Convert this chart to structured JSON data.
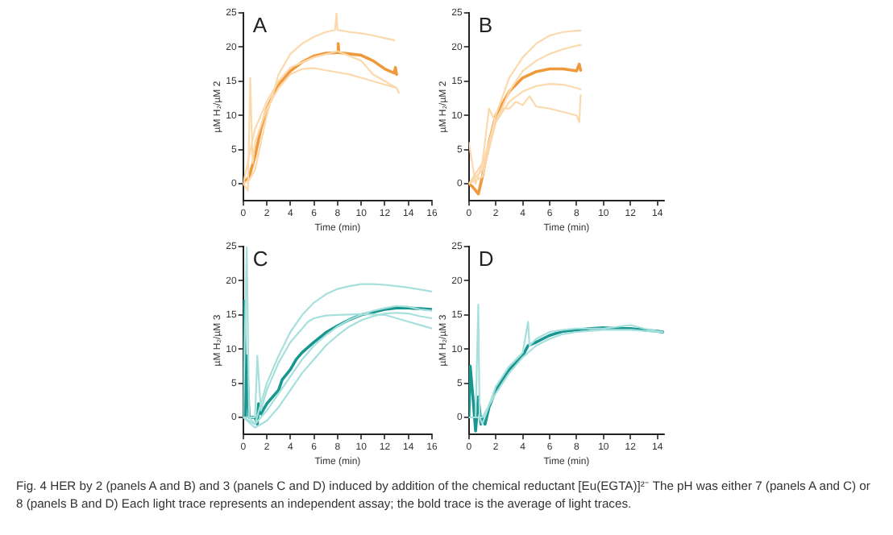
{
  "chart_data": [
    {
      "type": "line",
      "title": "A",
      "xlabel": "Time (min)",
      "ylabel": "µM H₂/µM 2",
      "xlim": [
        0,
        16
      ],
      "ylim": [
        -2.5,
        25
      ],
      "xticks": [
        0,
        2,
        4,
        6,
        8,
        10,
        12,
        14,
        16
      ],
      "yticks": [
        0,
        5,
        10,
        15,
        20,
        25
      ],
      "grid": false,
      "legend": false,
      "marker": "none",
      "line_style": "solid",
      "series": [
        {
          "color": "#fcd9ad",
          "x": [
            0,
            0.5,
            1,
            2,
            3,
            3.5,
            4,
            5,
            6,
            7,
            7.8,
            7.9,
            8,
            9,
            10,
            11,
            12,
            12.8
          ],
          "values": [
            0,
            0.5,
            2,
            10,
            16,
            17.5,
            19,
            20.5,
            21.5,
            22.2,
            22.5,
            25,
            22.5,
            22.2,
            22,
            21.7,
            21.3,
            21
          ]
        },
        {
          "color": "#fcd9ad",
          "x": [
            0,
            0.4,
            0.6,
            0.8,
            1,
            2,
            3,
            4,
            5,
            6,
            7,
            8,
            9,
            10,
            11,
            12,
            13,
            13.2
          ],
          "values": [
            0,
            -1,
            15.5,
            3,
            6,
            11,
            14,
            16,
            16.8,
            16.9,
            16.6,
            16.3,
            16,
            15.5,
            15,
            14.5,
            14,
            13.3
          ]
        },
        {
          "color": "#fcd9ad",
          "x": [
            0,
            1,
            2,
            3,
            4,
            6,
            8,
            10,
            11,
            12,
            13
          ],
          "values": [
            0,
            8,
            12,
            15,
            17,
            18.5,
            19.4,
            18,
            16,
            15,
            14
          ]
        },
        {
          "color": "#f0993a",
          "x": [
            0,
            0.5,
            1,
            1.5,
            2,
            3,
            4,
            5,
            6,
            7,
            8,
            8.05,
            8.1,
            9,
            10,
            11,
            12,
            12.8,
            12.9,
            13
          ],
          "values": [
            0,
            1,
            4,
            8,
            11,
            14.5,
            16.5,
            17.8,
            18.7,
            19.1,
            19.2,
            20.5,
            19.2,
            19,
            18.8,
            18,
            16.8,
            16.2,
            17,
            16
          ]
        }
      ]
    },
    {
      "type": "line",
      "title": "B",
      "xlabel": "Time (min)",
      "ylabel": "µM H₂/µM 2",
      "xlim": [
        0,
        14.5
      ],
      "ylim": [
        -2.5,
        25
      ],
      "xticks": [
        0,
        2,
        4,
        6,
        8,
        10,
        12,
        14
      ],
      "yticks": [
        0,
        5,
        10,
        15,
        20,
        25
      ],
      "grid": false,
      "legend": false,
      "marker": "none",
      "line_style": "solid",
      "series": [
        {
          "color": "#fcd9ad",
          "x": [
            0,
            1,
            2,
            3,
            4,
            5,
            6,
            7,
            8,
            8.3
          ],
          "values": [
            0,
            2,
            10,
            15.5,
            18.5,
            20.5,
            21.7,
            22.2,
            22.4,
            22.4
          ]
        },
        {
          "color": "#fcd9ad",
          "x": [
            0,
            1,
            2,
            3,
            4,
            5,
            6,
            7,
            8,
            8.3
          ],
          "values": [
            0,
            1,
            9,
            13.5,
            16.5,
            18,
            19,
            19.7,
            20.2,
            20.3
          ]
        },
        {
          "color": "#fcd9ad",
          "x": [
            0,
            0.5,
            1,
            2,
            3,
            4,
            5,
            6,
            7,
            8,
            8.3
          ],
          "values": [
            6,
            0,
            3,
            9,
            12,
            13.5,
            14.3,
            14.6,
            14.5,
            14,
            13.8
          ]
        },
        {
          "color": "#fcd9ad",
          "x": [
            0,
            1,
            1.5,
            2,
            2.5,
            3,
            3.5,
            4,
            4.5,
            5,
            6,
            7,
            8,
            8.2,
            8.3
          ],
          "values": [
            0,
            3,
            11,
            9,
            11,
            11,
            12,
            11.5,
            12.8,
            11.3,
            11,
            10.5,
            10,
            9,
            13
          ]
        },
        {
          "color": "#f0993a",
          "x": [
            0,
            0.3,
            0.7,
            1,
            1.5,
            2,
            3,
            4,
            5,
            6,
            7,
            8,
            8.2,
            8.3
          ],
          "values": [
            0,
            -0.5,
            -1.5,
            1,
            6,
            10,
            13.5,
            15.5,
            16.4,
            16.8,
            16.8,
            16.5,
            17.5,
            16.6
          ]
        }
      ]
    },
    {
      "type": "line",
      "title": "C",
      "xlabel": "Time (min)",
      "ylabel": "µM H₂/µM 3",
      "xlim": [
        0,
        16
      ],
      "ylim": [
        -2.5,
        25
      ],
      "xticks": [
        0,
        2,
        4,
        6,
        8,
        10,
        12,
        14,
        16
      ],
      "yticks": [
        0,
        5,
        10,
        15,
        20,
        25
      ],
      "grid": false,
      "legend": false,
      "marker": "none",
      "line_style": "solid",
      "series": [
        {
          "color": "#a6e0dc",
          "x": [
            0,
            0.3,
            0.5,
            1,
            1.5,
            2,
            3,
            4,
            5,
            6,
            7,
            8,
            9,
            10,
            11,
            12,
            13,
            14,
            15,
            16
          ],
          "values": [
            0,
            25,
            0,
            -1,
            2,
            5,
            9,
            12.5,
            15,
            16.8,
            18,
            18.8,
            19.2,
            19.5,
            19.5,
            19.4,
            19.2,
            19,
            18.7,
            18.4
          ]
        },
        {
          "color": "#a6e0dc",
          "x": [
            0,
            1,
            1.2,
            1.5,
            2,
            3,
            4,
            5,
            5.5,
            6,
            7,
            8,
            10,
            12,
            14,
            16
          ],
          "values": [
            0,
            0,
            9,
            1,
            4,
            8,
            11,
            13,
            14,
            14.5,
            14.9,
            15,
            15.1,
            15,
            14,
            13
          ]
        },
        {
          "color": "#a6e0dc",
          "x": [
            0,
            1,
            2,
            3,
            4,
            5,
            6,
            7,
            8,
            9,
            10,
            11,
            12,
            13,
            14,
            15,
            16
          ],
          "values": [
            0,
            -1,
            1,
            3.5,
            6,
            8.5,
            10.5,
            12,
            13.3,
            14.3,
            15,
            15.6,
            16,
            16.3,
            16.2,
            15.8,
            15.6
          ]
        },
        {
          "color": "#a6e0dc",
          "x": [
            0,
            1,
            2,
            3,
            4,
            5,
            6,
            7,
            8,
            9,
            10,
            11,
            12,
            13,
            14,
            15,
            16
          ],
          "values": [
            0,
            -1.5,
            -0.5,
            1.5,
            4,
            6.5,
            8.5,
            10.5,
            12,
            13.3,
            14.2,
            14.8,
            15.2,
            15.3,
            15.2,
            14.8,
            14.5
          ]
        },
        {
          "color": "#1a9691",
          "x": [
            0,
            0.1,
            0.2,
            0.3,
            0.5,
            1,
            1.2,
            1.3,
            1.5,
            2,
            3,
            3.3,
            4,
            4.5,
            5,
            6,
            7,
            8,
            9,
            10,
            11,
            12,
            13,
            14,
            15,
            16
          ],
          "values": [
            0,
            17,
            0,
            9,
            0,
            0,
            -1,
            2,
            0.5,
            2,
            4,
            5.5,
            7,
            8.5,
            9.5,
            11,
            12.4,
            13.4,
            14.3,
            15,
            15.4,
            15.8,
            16,
            16,
            15.9,
            15.8
          ]
        }
      ]
    },
    {
      "type": "line",
      "title": "D",
      "xlabel": "Time (min)",
      "ylabel": "µM H₂/µM 3",
      "xlim": [
        0,
        14.5
      ],
      "ylim": [
        -2.5,
        25
      ],
      "xticks": [
        0,
        2,
        4,
        6,
        8,
        10,
        12,
        14
      ],
      "yticks": [
        0,
        5,
        10,
        15,
        20,
        25
      ],
      "grid": false,
      "legend": false,
      "marker": "none",
      "line_style": "solid",
      "series": [
        {
          "color": "#a6e0dc",
          "x": [
            0,
            0.5,
            0.7,
            0.8,
            1,
            2,
            3,
            4,
            4.4,
            4.5,
            5,
            6,
            7,
            8,
            10,
            12,
            13,
            14,
            14.4
          ],
          "values": [
            0,
            0,
            16.5,
            0,
            -1,
            4.5,
            7.5,
            9.5,
            14,
            10.5,
            11.5,
            12.5,
            12.8,
            13,
            13,
            13.5,
            13,
            12.6,
            12.5
          ]
        },
        {
          "color": "#a6e0dc",
          "x": [
            0,
            1,
            2,
            3,
            4,
            5,
            6,
            7,
            8,
            10,
            12,
            14,
            14.4
          ],
          "values": [
            0,
            0,
            3.5,
            6.5,
            8.8,
            10.5,
            11.5,
            12.2,
            12.5,
            12.8,
            12.8,
            12.5,
            12.5
          ]
        },
        {
          "color": "#1a9691",
          "x": [
            0,
            0.1,
            0.3,
            0.5,
            0.7,
            0.9,
            1,
            1.2,
            1.5,
            2,
            3,
            4,
            4.4,
            5,
            6,
            7,
            8,
            9,
            10,
            11,
            12,
            13,
            14,
            14.4
          ],
          "values": [
            0,
            7.5,
            3,
            -2,
            3,
            -1,
            0,
            -1,
            1.5,
            4,
            7,
            9,
            10.5,
            11,
            12,
            12.6,
            12.8,
            13,
            13.1,
            13,
            13,
            12.8,
            12.6,
            12.5
          ]
        }
      ],
      "annotations": [
        "Fig. 4   HER by 2 (panels A and B) and 3 (panels C and D) induced by addition of the chemical reductant [Eu(EGTA)]²⁻ The pH was either 7 (panels A and C) or 8 (panels B and D) Each light trace represents an independent assay; the bold trace is the average of light traces."
      ]
    }
  ]
}
